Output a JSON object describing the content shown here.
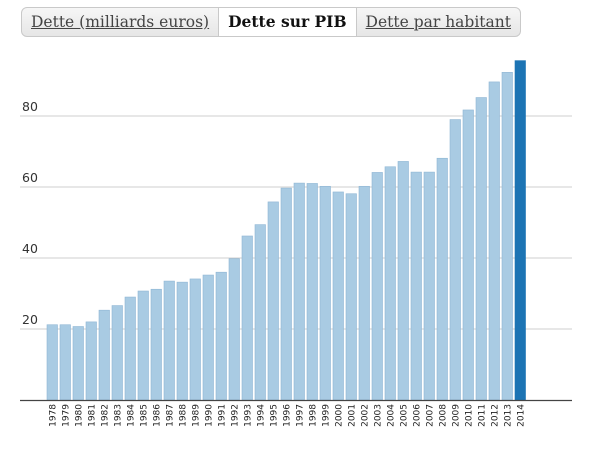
{
  "tabs": [
    {
      "label": "Dette (milliards euros)",
      "active": false
    },
    {
      "label": "Dette sur PIB",
      "active": true
    },
    {
      "label": "Dette par habitant",
      "active": false
    }
  ],
  "colors": {
    "bar": "#a9cbe3",
    "bar_border": "#8fb6d4",
    "bar_highlight": "#1c74b4",
    "grid": "#cfcfcf",
    "axis": "#444444"
  },
  "chart_data": {
    "type": "bar",
    "title": "",
    "xlabel": "",
    "ylabel": "",
    "ylim": [
      0,
      100
    ],
    "yticks": [
      20,
      40,
      60,
      80
    ],
    "grid": true,
    "highlight_category": "2014",
    "categories": [
      "1978",
      "1979",
      "1980",
      "1981",
      "1982",
      "1983",
      "1984",
      "1985",
      "1986",
      "1987",
      "1988",
      "1989",
      "1990",
      "1991",
      "1992",
      "1993",
      "1994",
      "1995",
      "1996",
      "1997",
      "1998",
      "1999",
      "2000",
      "2001",
      "2002",
      "2003",
      "2004",
      "2005",
      "2006",
      "2007",
      "2008",
      "2009",
      "2010",
      "2011",
      "2012",
      "2013",
      "2014"
    ],
    "values": [
      21.2,
      21.2,
      20.7,
      22.0,
      25.3,
      26.6,
      29.0,
      30.7,
      31.2,
      33.5,
      33.2,
      34.1,
      35.2,
      36.0,
      39.8,
      46.2,
      49.4,
      55.8,
      59.7,
      61.1,
      61.0,
      60.2,
      58.6,
      58.1,
      60.2,
      64.1,
      65.7,
      67.2,
      64.2,
      64.2,
      68.1,
      79.0,
      81.7,
      85.2,
      89.6,
      92.3,
      95.6
    ]
  }
}
